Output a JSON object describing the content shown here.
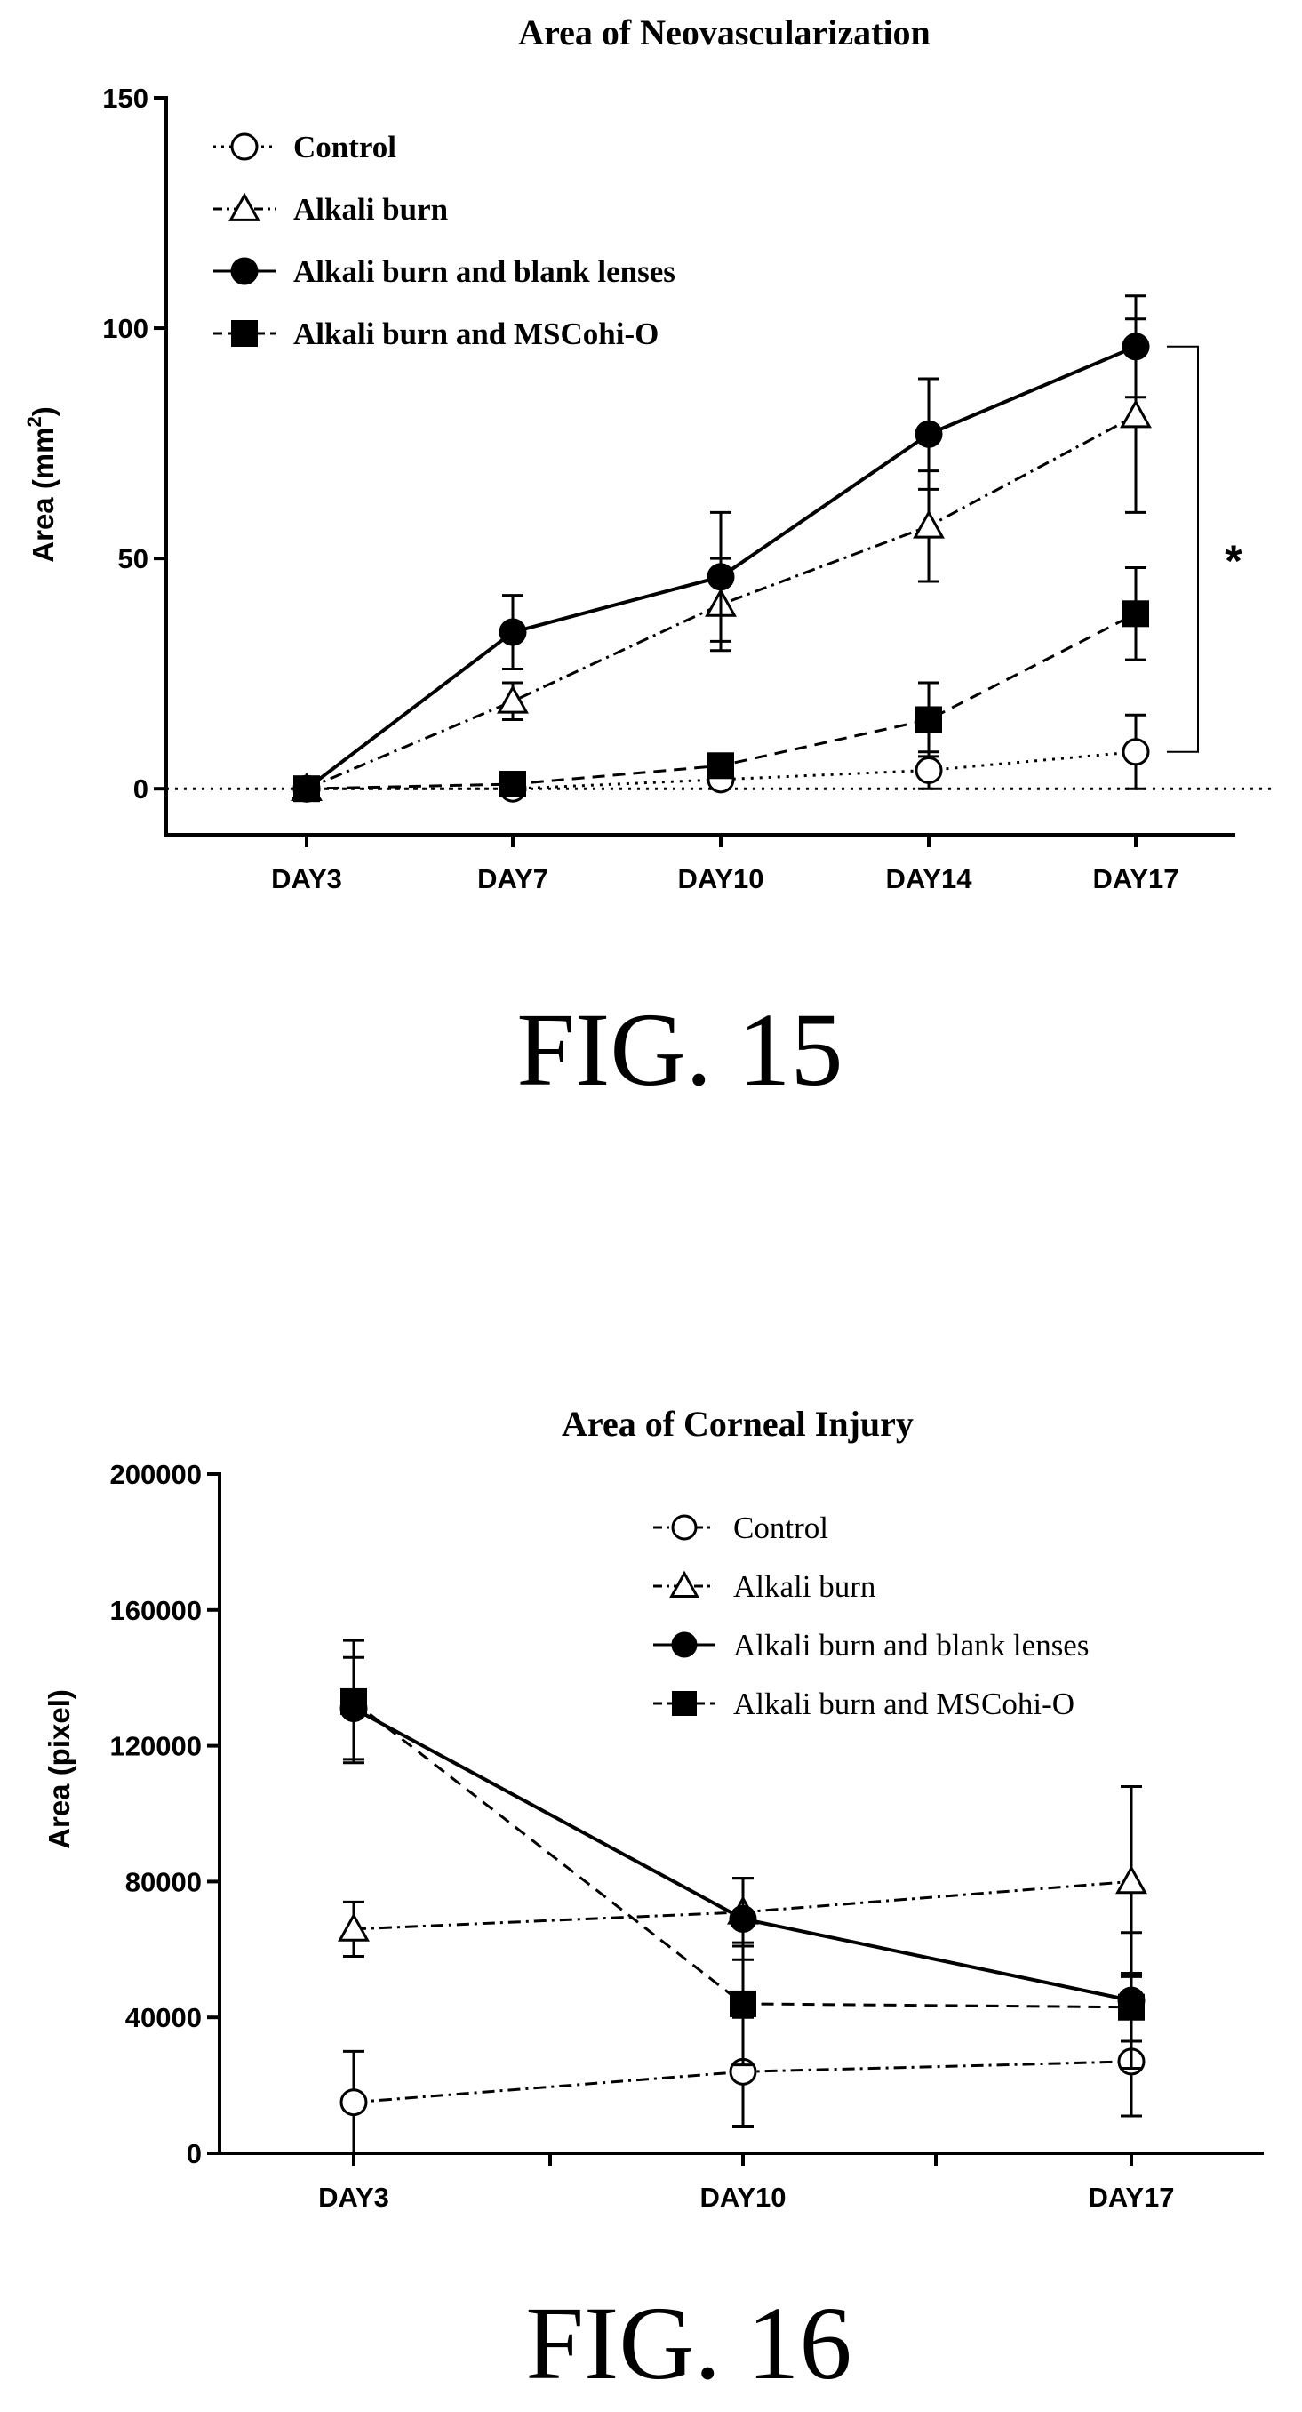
{
  "chart_data": [
    {
      "type": "line",
      "title": "Area of Neovascularization",
      "xlabel": "",
      "ylabel": "Area (mm",
      "ylabel_sup": "2",
      "ylabel_suffix": ")",
      "categories": [
        "DAY3",
        "DAY7",
        "DAY10",
        "DAY14",
        "DAY17"
      ],
      "ylim": [
        -10,
        150
      ],
      "yticks": [
        "0",
        "50",
        "100",
        "150"
      ],
      "ytick_values": [
        0,
        50,
        100,
        150
      ],
      "grid": false,
      "baseline": 0,
      "legend_position": "top-left",
      "series": [
        {
          "name": "Control",
          "marker": "circle-open",
          "line": "dotted",
          "values": [
            0,
            0,
            2,
            4,
            8
          ],
          "errors": [
            0,
            0,
            2,
            4,
            8
          ]
        },
        {
          "name": "Alkali burn",
          "marker": "triangle-open",
          "line": "dash-dot",
          "values": [
            0,
            19,
            40,
            57,
            81
          ],
          "errors": [
            0,
            4,
            10,
            12,
            21
          ]
        },
        {
          "name": "Alkali burn and blank lenses",
          "marker": "circle-filled",
          "line": "solid",
          "values": [
            0,
            34,
            46,
            77,
            96
          ],
          "errors": [
            0,
            8,
            14,
            12,
            11
          ]
        },
        {
          "name": "Alkali burn and MSCohi-O",
          "marker": "square-filled",
          "line": "dashed",
          "values": [
            0,
            1,
            5,
            15,
            38
          ],
          "errors": [
            0,
            0,
            0,
            8,
            10
          ]
        }
      ],
      "annotation": {
        "text": "*",
        "from_series": "Alkali burn and blank lenses",
        "to_series": "Control",
        "at": "DAY17"
      },
      "caption": "FIG. 15"
    },
    {
      "type": "line",
      "title": "Area of Corneal Injury",
      "xlabel": "",
      "ylabel": "Area (pixel)",
      "categories": [
        "DAY3",
        "DAY10",
        "DAY17"
      ],
      "ylim": [
        0,
        200000
      ],
      "yticks": [
        "0",
        "40000",
        "80000",
        "120000",
        "160000",
        "200000"
      ],
      "ytick_values": [
        0,
        40000,
        80000,
        120000,
        160000,
        200000
      ],
      "grid": false,
      "legend_position": "top-right",
      "series": [
        {
          "name": "Control",
          "marker": "circle-open",
          "line": "dash-dot",
          "values": [
            15000,
            24000,
            27000
          ],
          "errors": [
            15000,
            16000,
            16000
          ]
        },
        {
          "name": "Alkali burn",
          "marker": "triangle-open",
          "line": "dash-dot",
          "values": [
            66000,
            71000,
            80000
          ],
          "errors": [
            8000,
            10000,
            28000
          ]
        },
        {
          "name": "Alkali burn and blank lenses",
          "marker": "circle-filled",
          "line": "solid",
          "values": [
            131000,
            69000,
            45000
          ],
          "errors": [
            15000,
            12000,
            20000
          ]
        },
        {
          "name": "Alkali burn and MSCohi-O",
          "marker": "square-filled",
          "line": "dashed",
          "values": [
            133000,
            44000,
            43000
          ],
          "errors": [
            18000,
            18000,
            10000
          ]
        }
      ],
      "caption": "FIG. 16"
    }
  ]
}
